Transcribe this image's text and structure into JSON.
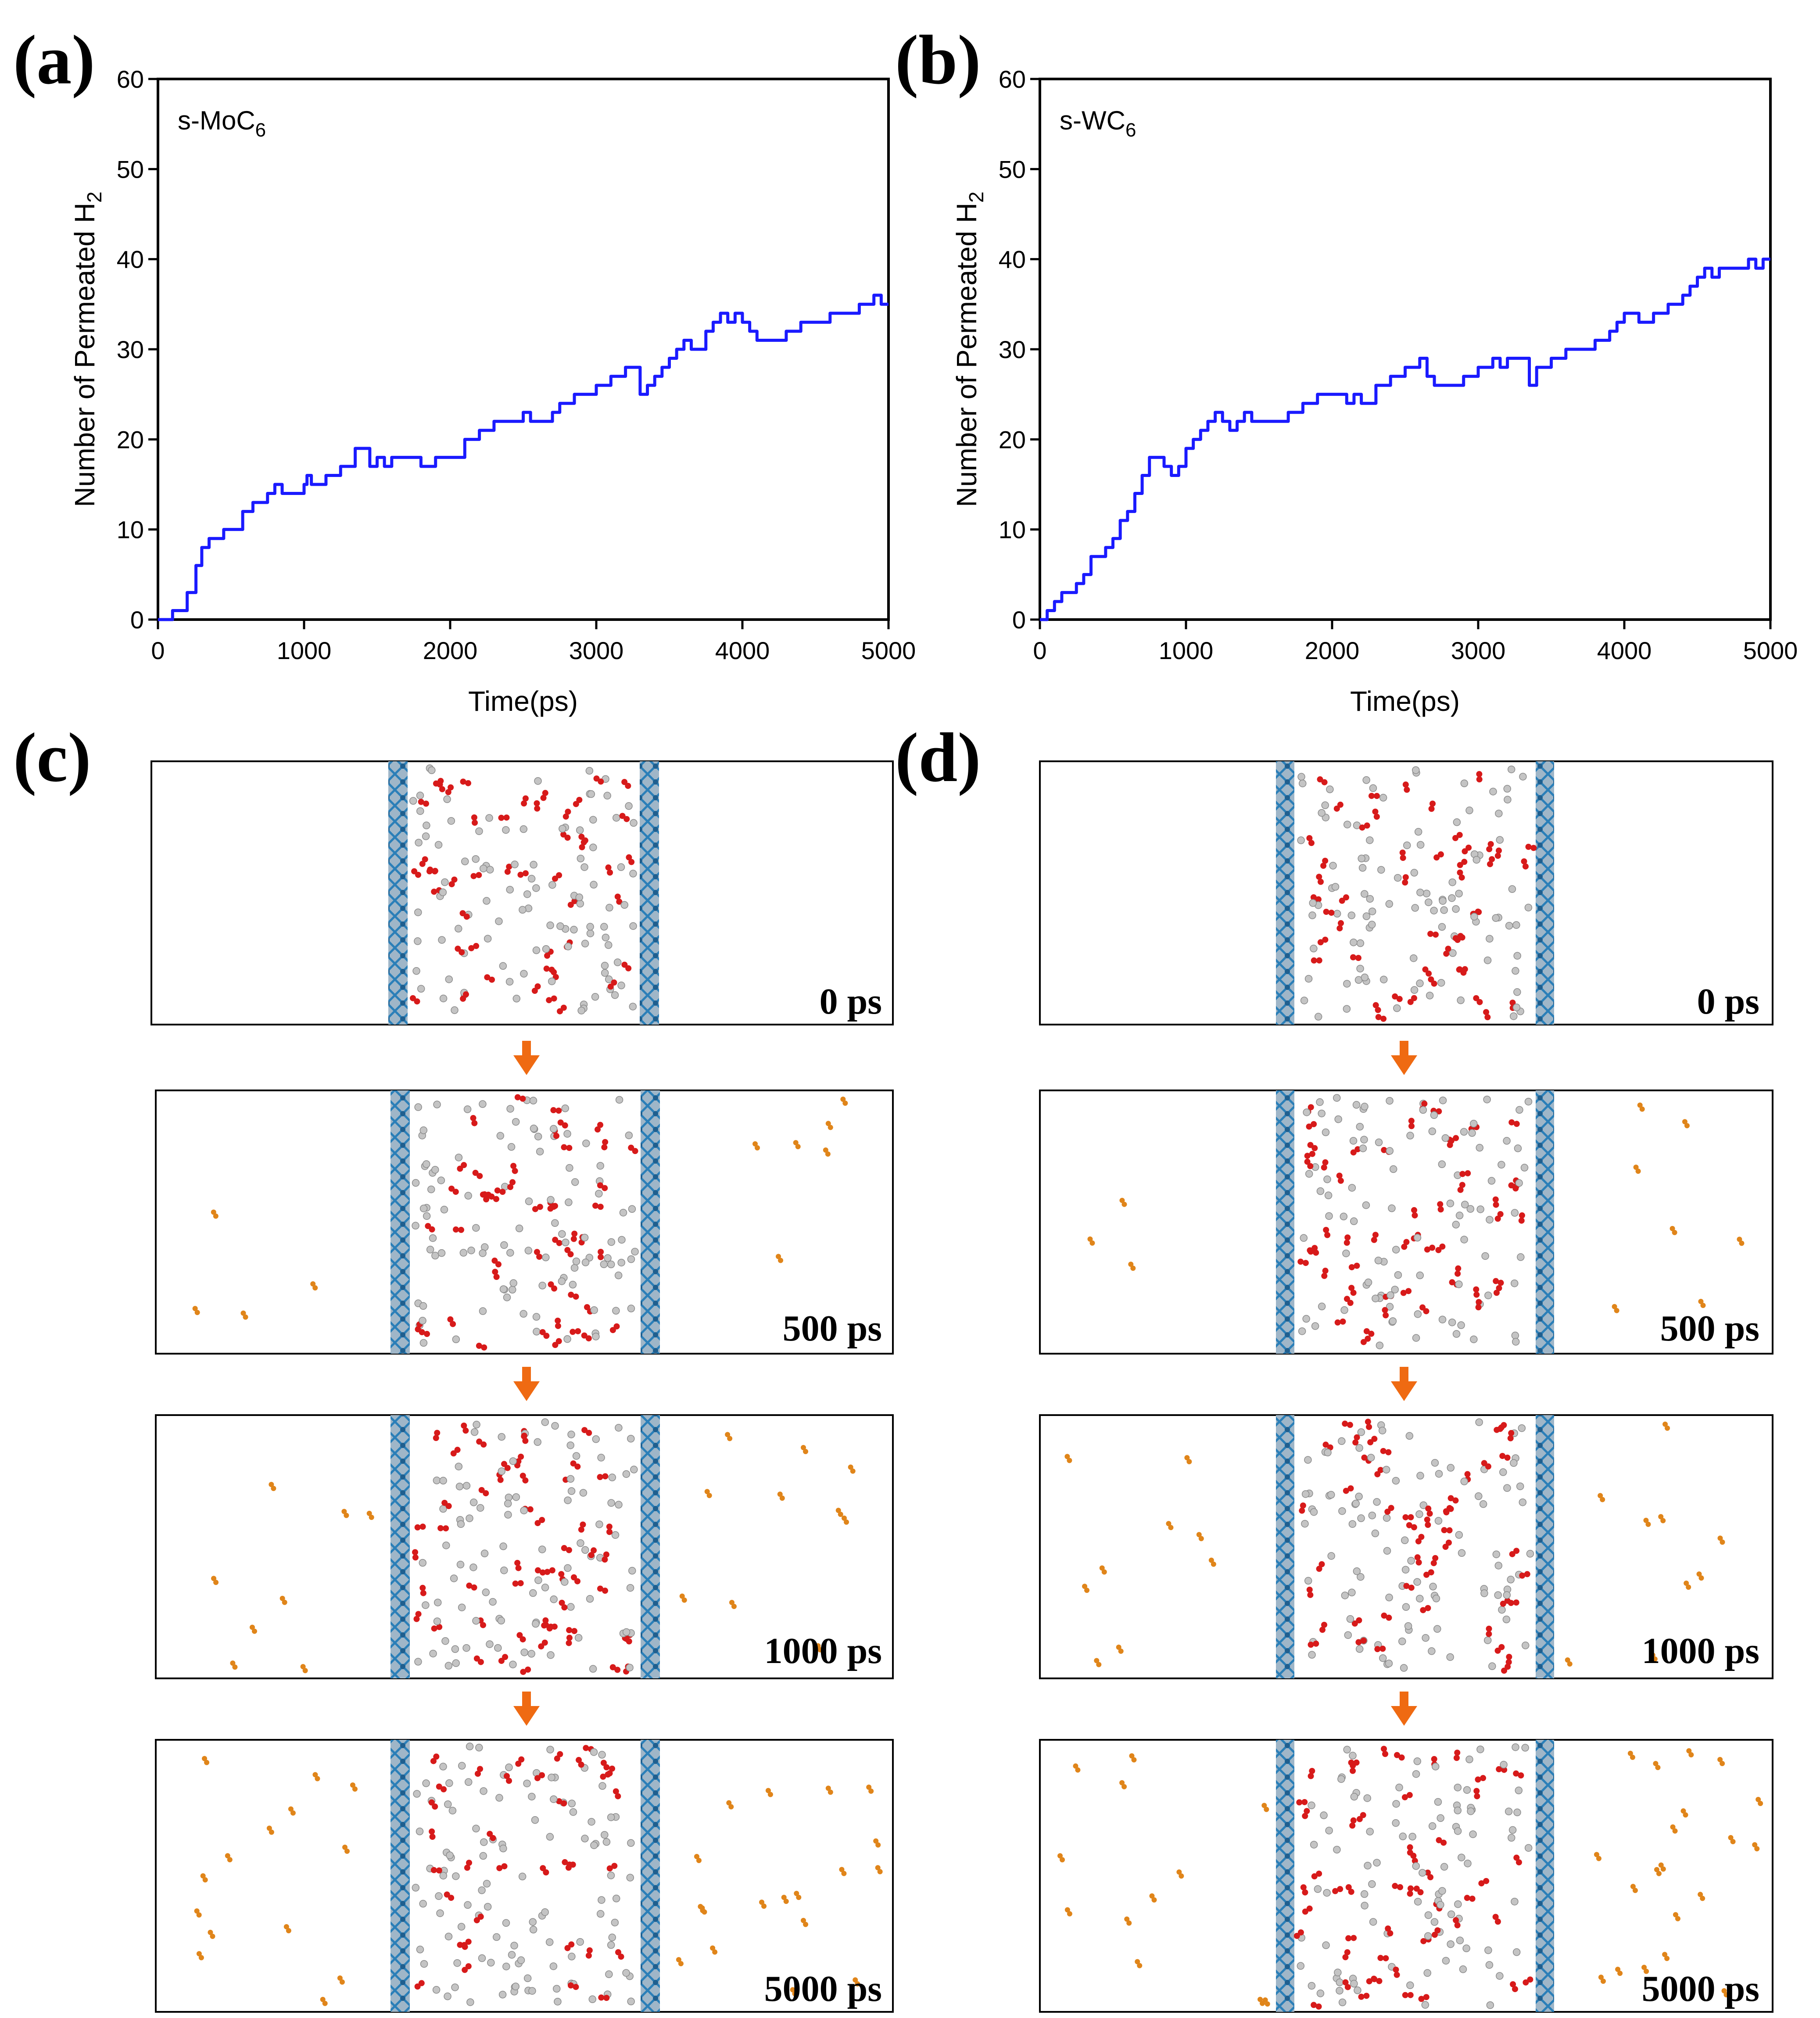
{
  "panels": {
    "a": "(a)",
    "b": "(b)",
    "c": "(c)",
    "d": "(d)"
  },
  "chart_data": [
    {
      "type": "line",
      "panel": "(a)",
      "title": "s-MoC",
      "title_sub": "6",
      "xlabel": "Time(ps)",
      "ylabel": "Number of Permeated H",
      "ylabel_sub": "2",
      "xlim": [
        0,
        5000
      ],
      "ylim": [
        0,
        60
      ],
      "xticks": [
        0,
        1000,
        2000,
        3000,
        4000,
        5000
      ],
      "yticks": [
        0,
        10,
        20,
        30,
        40,
        50,
        60
      ],
      "color": "#1a1aff",
      "series": [
        {
          "name": "s-MoC6",
          "x": [
            0,
            80,
            100,
            180,
            200,
            260,
            300,
            350,
            400,
            450,
            500,
            580,
            600,
            650,
            700,
            750,
            800,
            850,
            900,
            1000,
            1020,
            1050,
            1100,
            1150,
            1200,
            1250,
            1350,
            1400,
            1450,
            1500,
            1550,
            1600,
            1700,
            1800,
            1900,
            2000,
            2100,
            2200,
            2250,
            2300,
            2400,
            2500,
            2550,
            2600,
            2700,
            2750,
            2800,
            2850,
            2900,
            3000,
            3100,
            3150,
            3200,
            3250,
            3300,
            3350,
            3400,
            3450,
            3500,
            3550,
            3600,
            3650,
            3700,
            3750,
            3800,
            3850,
            3900,
            3950,
            4000,
            4050,
            4100,
            4200,
            4300,
            4400,
            4500,
            4600,
            4700,
            4800,
            4900,
            4950,
            5000
          ],
          "y": [
            0,
            0,
            1,
            1,
            3,
            6,
            8,
            9,
            9,
            10,
            10,
            12,
            12,
            13,
            13,
            14,
            15,
            14,
            14,
            15,
            16,
            15,
            15,
            16,
            16,
            17,
            19,
            19,
            17,
            18,
            17,
            18,
            18,
            17,
            18,
            18,
            20,
            21,
            21,
            22,
            22,
            23,
            22,
            22,
            23,
            24,
            24,
            25,
            25,
            26,
            27,
            27,
            28,
            28,
            25,
            26,
            27,
            28,
            29,
            30,
            31,
            30,
            30,
            32,
            33,
            34,
            33,
            34,
            33,
            32,
            31,
            31,
            32,
            33,
            33,
            34,
            34,
            35,
            36,
            35,
            35
          ]
        }
      ]
    },
    {
      "type": "line",
      "panel": "(b)",
      "title": "s-WC",
      "title_sub": "6",
      "xlabel": "Time(ps)",
      "ylabel": "Number of Permeated H",
      "ylabel_sub": "2",
      "xlim": [
        0,
        5000
      ],
      "ylim": [
        0,
        60
      ],
      "xticks": [
        0,
        1000,
        2000,
        3000,
        4000,
        5000
      ],
      "yticks": [
        0,
        10,
        20,
        30,
        40,
        50,
        60
      ],
      "color": "#1a1aff",
      "series": [
        {
          "name": "s-WC6",
          "x": [
            0,
            50,
            100,
            150,
            200,
            250,
            300,
            350,
            400,
            450,
            500,
            550,
            600,
            650,
            700,
            750,
            800,
            850,
            900,
            950,
            1000,
            1050,
            1100,
            1150,
            1200,
            1250,
            1300,
            1350,
            1400,
            1450,
            1500,
            1600,
            1700,
            1750,
            1800,
            1900,
            2000,
            2100,
            2150,
            2200,
            2300,
            2400,
            2500,
            2550,
            2600,
            2650,
            2700,
            2800,
            2900,
            3000,
            3100,
            3150,
            3200,
            3300,
            3350,
            3400,
            3450,
            3500,
            3600,
            3700,
            3800,
            3900,
            3950,
            4000,
            4050,
            4100,
            4200,
            4300,
            4350,
            4400,
            4450,
            4500,
            4550,
            4600,
            4650,
            4700,
            4800,
            4850,
            4900,
            4950,
            5000
          ],
          "y": [
            0,
            1,
            2,
            3,
            3,
            4,
            5,
            7,
            7,
            8,
            9,
            11,
            12,
            14,
            16,
            18,
            18,
            17,
            16,
            17,
            19,
            20,
            21,
            22,
            23,
            22,
            21,
            22,
            23,
            22,
            22,
            22,
            23,
            23,
            24,
            25,
            25,
            24,
            25,
            24,
            26,
            27,
            28,
            28,
            29,
            27,
            26,
            26,
            27,
            28,
            29,
            28,
            29,
            29,
            26,
            28,
            28,
            29,
            30,
            30,
            31,
            32,
            33,
            34,
            34,
            33,
            34,
            35,
            35,
            36,
            37,
            38,
            39,
            38,
            39,
            39,
            39,
            40,
            39,
            40,
            40
          ]
        }
      ]
    }
  ],
  "snapshots": {
    "c": {
      "labels": [
        "0 ps",
        "500 ps",
        "1000 ps",
        "5000 ps"
      ]
    },
    "d": {
      "labels": [
        "0 ps",
        "500 ps",
        "1000 ps",
        "5000 ps"
      ]
    }
  }
}
